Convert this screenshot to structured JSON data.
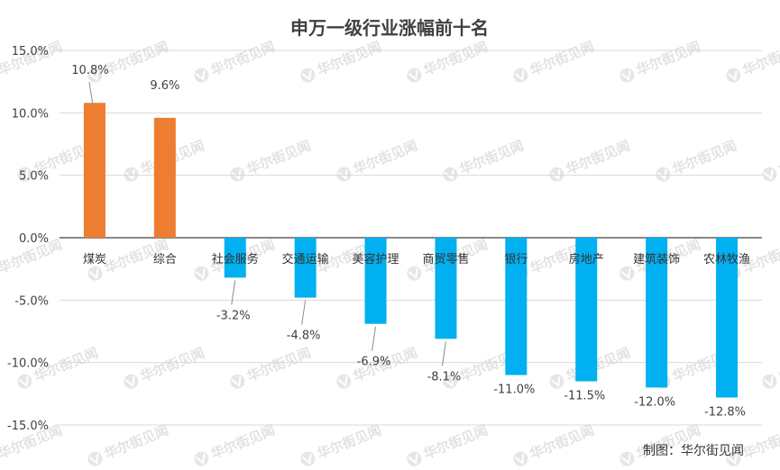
{
  "chart_data": {
    "type": "bar",
    "title": "申万一级行业涨幅前十名",
    "categories": [
      "煤炭",
      "综合",
      "社会服务",
      "交通运输",
      "美容护理",
      "商贸零售",
      "银行",
      "房地产",
      "建筑装饰",
      "农林牧渔"
    ],
    "values": [
      10.8,
      9.6,
      -3.2,
      -4.8,
      -6.9,
      -8.1,
      -11.0,
      -11.5,
      -12.0,
      -12.8
    ],
    "value_labels": [
      "10.8%",
      "9.6%",
      "-3.2%",
      "-4.8%",
      "-6.9%",
      "-8.1%",
      "-11.0%",
      "-11.5%",
      "-12.0%",
      "-12.8%"
    ],
    "ylim": [
      -15,
      15
    ],
    "yticks": [
      15,
      10,
      5,
      0,
      -5,
      -10,
      -15
    ],
    "ytick_labels": [
      "15.0%",
      "10.0%",
      "5.0%",
      "0.0%",
      "-5.0%",
      "-10.0%",
      "-15.0%"
    ],
    "xlabel": "",
    "ylabel": "",
    "grid": true,
    "colors": {
      "positive": "#ED7D31",
      "negative": "#00B0F0",
      "grid": "#D9D9D9",
      "axis": "#404040"
    }
  },
  "source_label": "制图：华尔街见闻",
  "watermark_text": "华尔街见闻"
}
